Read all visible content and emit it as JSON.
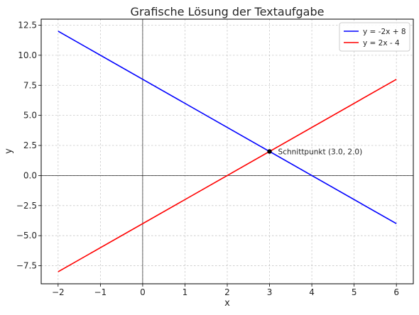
{
  "chart_data": {
    "type": "line",
    "title": "Grafische Lösung der Textaufgabe",
    "xlabel": "x",
    "ylabel": "y",
    "xlim": [
      -2.4,
      6.4
    ],
    "ylim": [
      -9.0,
      13.0
    ],
    "xticks": [
      -2,
      -1,
      0,
      1,
      2,
      3,
      4,
      5,
      6
    ],
    "xtick_labels": [
      "−2",
      "−1",
      "0",
      "1",
      "2",
      "3",
      "4",
      "5",
      "6"
    ],
    "yticks": [
      -7.5,
      -5.0,
      -2.5,
      0.0,
      2.5,
      5.0,
      7.5,
      10.0,
      12.5
    ],
    "ytick_labels": [
      "−7.5",
      "−5.0",
      "−2.5",
      "0.0",
      "2.5",
      "5.0",
      "7.5",
      "10.0",
      "12.5"
    ],
    "grid": true,
    "legend_position": "top-right",
    "series": [
      {
        "name": "y = -2x + 8",
        "color": "#0000ff",
        "x": [
          -2,
          6
        ],
        "y": [
          12,
          -4
        ]
      },
      {
        "name": "y = 2x - 4",
        "color": "#ff0000",
        "x": [
          -2,
          6
        ],
        "y": [
          -8,
          8
        ]
      }
    ],
    "reference_lines": {
      "x0": true,
      "y0": true,
      "color": "#000000"
    },
    "annotations": [
      {
        "x": 3.0,
        "y": 2.0,
        "text": "Schnittpunkt (3.0, 2.0)"
      }
    ]
  }
}
